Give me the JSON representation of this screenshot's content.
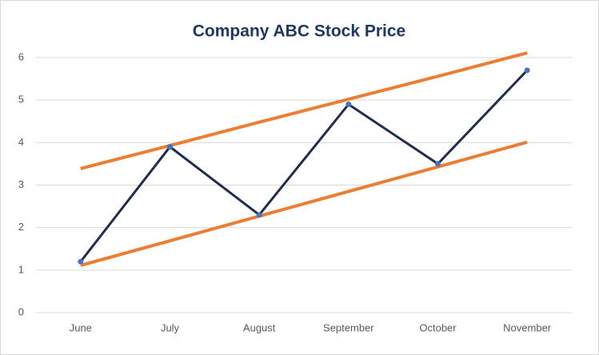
{
  "chart_data": {
    "type": "line",
    "title": "Company ABC Stock Price",
    "categories": [
      "June",
      "July",
      "August",
      "September",
      "October",
      "November"
    ],
    "series": [
      {
        "color": "#ed7d31",
        "width": 4,
        "markers": false,
        "values": [
          3.39,
          3.93,
          4.48,
          5.02,
          5.56,
          6.11
        ]
      },
      {
        "color": "#ed7d31",
        "width": 4,
        "markers": false,
        "values": [
          1.11,
          1.69,
          2.27,
          2.85,
          3.43,
          4.01
        ]
      },
      {
        "color": "#1f2d50",
        "width": 3,
        "markers": true,
        "marker_color": "#4472c4",
        "values": [
          1.2,
          3.9,
          2.3,
          4.9,
          3.5,
          5.7
        ]
      }
    ],
    "ylim": [
      0,
      6
    ],
    "yticks": [
      0,
      1,
      2,
      3,
      4,
      5,
      6
    ],
    "grid": true
  }
}
